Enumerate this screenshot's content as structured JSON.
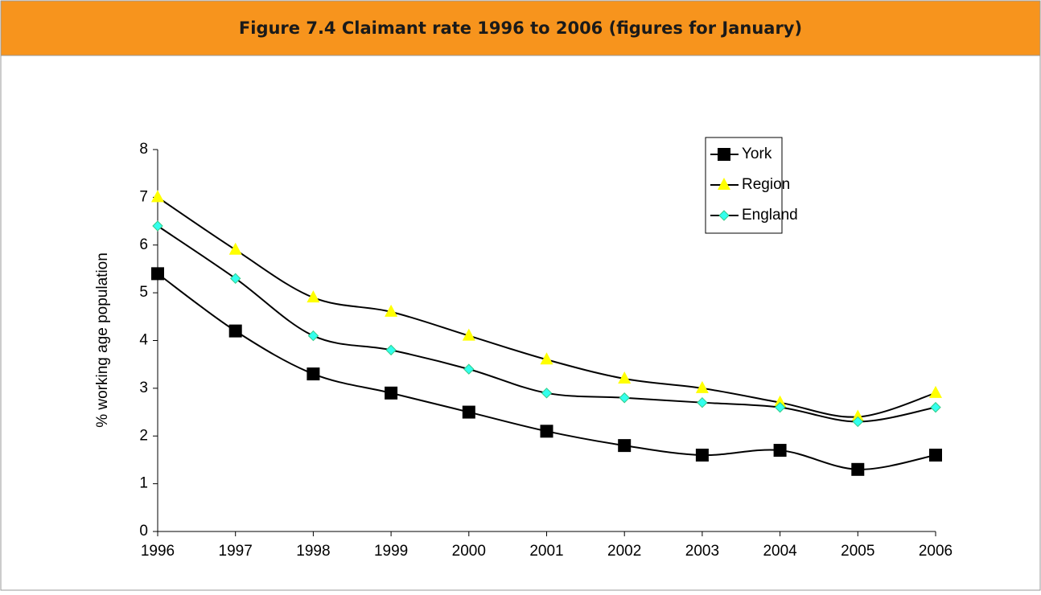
{
  "chart_data": {
    "type": "line",
    "title": "Figure 7.4 Claimant rate 1996 to 2006 (figures for January)",
    "y_label": "% working age population",
    "categories": [
      "1996",
      "1997",
      "1998",
      "1999",
      "2000",
      "2001",
      "2002",
      "2003",
      "2004",
      "2005",
      "2006"
    ],
    "series": [
      {
        "name": "York",
        "color": "#000000",
        "marker": "square",
        "values": [
          5.4,
          4.2,
          3.3,
          2.9,
          2.5,
          2.1,
          1.8,
          1.6,
          1.7,
          1.3,
          1.6
        ]
      },
      {
        "name": "Region",
        "color": "#ffff00",
        "marker": "triangle",
        "values": [
          7.0,
          5.9,
          4.9,
          4.6,
          4.1,
          3.6,
          3.2,
          3.0,
          2.7,
          2.4,
          2.9
        ]
      },
      {
        "name": "England",
        "color": "#33ffee",
        "marker": "diamond",
        "values": [
          6.4,
          5.3,
          4.1,
          3.8,
          3.4,
          2.9,
          2.8,
          2.7,
          2.6,
          2.3,
          2.6
        ]
      }
    ],
    "ylim": [
      0,
      8
    ],
    "yticks": [
      0,
      1,
      2,
      3,
      4,
      5,
      6,
      7,
      8
    ],
    "grid": false,
    "legend": "upper right"
  }
}
